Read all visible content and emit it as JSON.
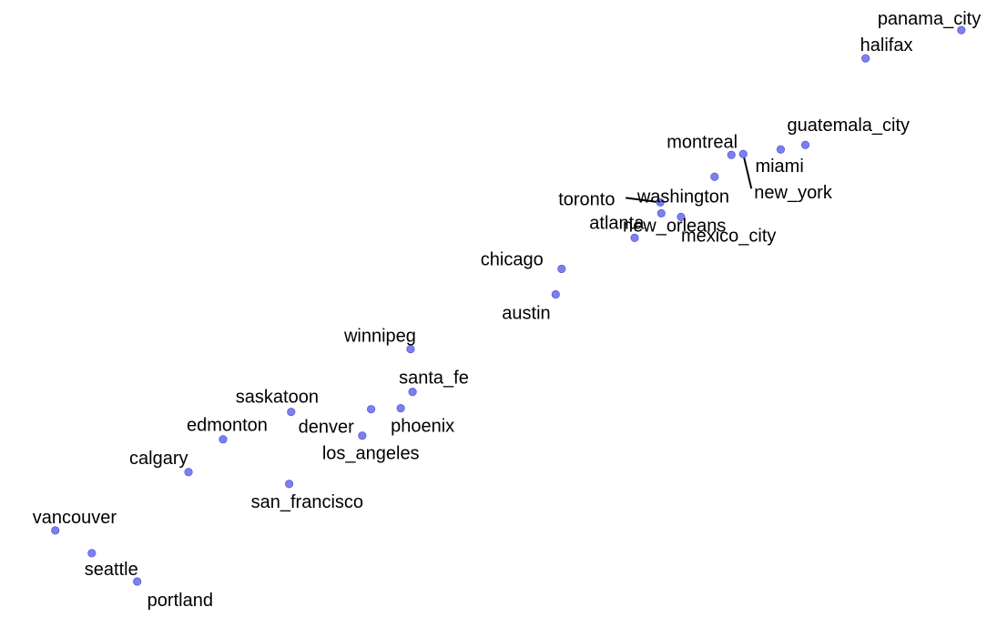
{
  "chart_data": {
    "type": "scatter",
    "title": "",
    "xlabel": "",
    "ylabel": "",
    "axes_visible": false,
    "grid": false,
    "marker_color": "#7b80ef",
    "points": [
      {
        "label": "panama_city",
        "x": 9.74,
        "y": 6.44
      },
      {
        "label": "halifax",
        "x": 8.77,
        "y": 6.13
      },
      {
        "label": "guatemala_city",
        "x": 8.16,
        "y": 5.18
      },
      {
        "label": "miami",
        "x": 7.91,
        "y": 5.13
      },
      {
        "label": "montreal",
        "x": 7.41,
        "y": 5.07
      },
      {
        "label": "new_york",
        "x": 7.53,
        "y": 5.08
      },
      {
        "label": "washington",
        "x": 7.24,
        "y": 4.83
      },
      {
        "label": "toronto",
        "x": 6.69,
        "y": 4.55
      },
      {
        "label": "atlanta",
        "x": 6.7,
        "y": 4.43
      },
      {
        "label": "mexico_city",
        "x": 6.9,
        "y": 4.39
      },
      {
        "label": "new_orleans",
        "x": 6.43,
        "y": 4.16
      },
      {
        "label": "chicago",
        "x": 5.69,
        "y": 3.82
      },
      {
        "label": "austin",
        "x": 5.63,
        "y": 3.54
      },
      {
        "label": "winnipeg",
        "x": 4.16,
        "y": 2.94
      },
      {
        "label": "santa_fe",
        "x": 4.18,
        "y": 2.47
      },
      {
        "label": "phoenix",
        "x": 4.06,
        "y": 2.29
      },
      {
        "label": "denver",
        "x": 3.76,
        "y": 2.28
      },
      {
        "label": "los_angeles",
        "x": 3.67,
        "y": 1.99
      },
      {
        "label": "saskatoon",
        "x": 2.95,
        "y": 2.25
      },
      {
        "label": "edmonton",
        "x": 2.26,
        "y": 1.95
      },
      {
        "label": "calgary",
        "x": 1.91,
        "y": 1.59
      },
      {
        "label": "san_francisco",
        "x": 2.93,
        "y": 1.46
      },
      {
        "label": "vancouver",
        "x": 0.56,
        "y": 0.95
      },
      {
        "label": "seattle",
        "x": 0.93,
        "y": 0.7
      },
      {
        "label": "portland",
        "x": 1.39,
        "y": 0.39
      }
    ],
    "xlim": [
      0.0,
      10.0
    ],
    "ylim": [
      0.0,
      6.77
    ]
  }
}
